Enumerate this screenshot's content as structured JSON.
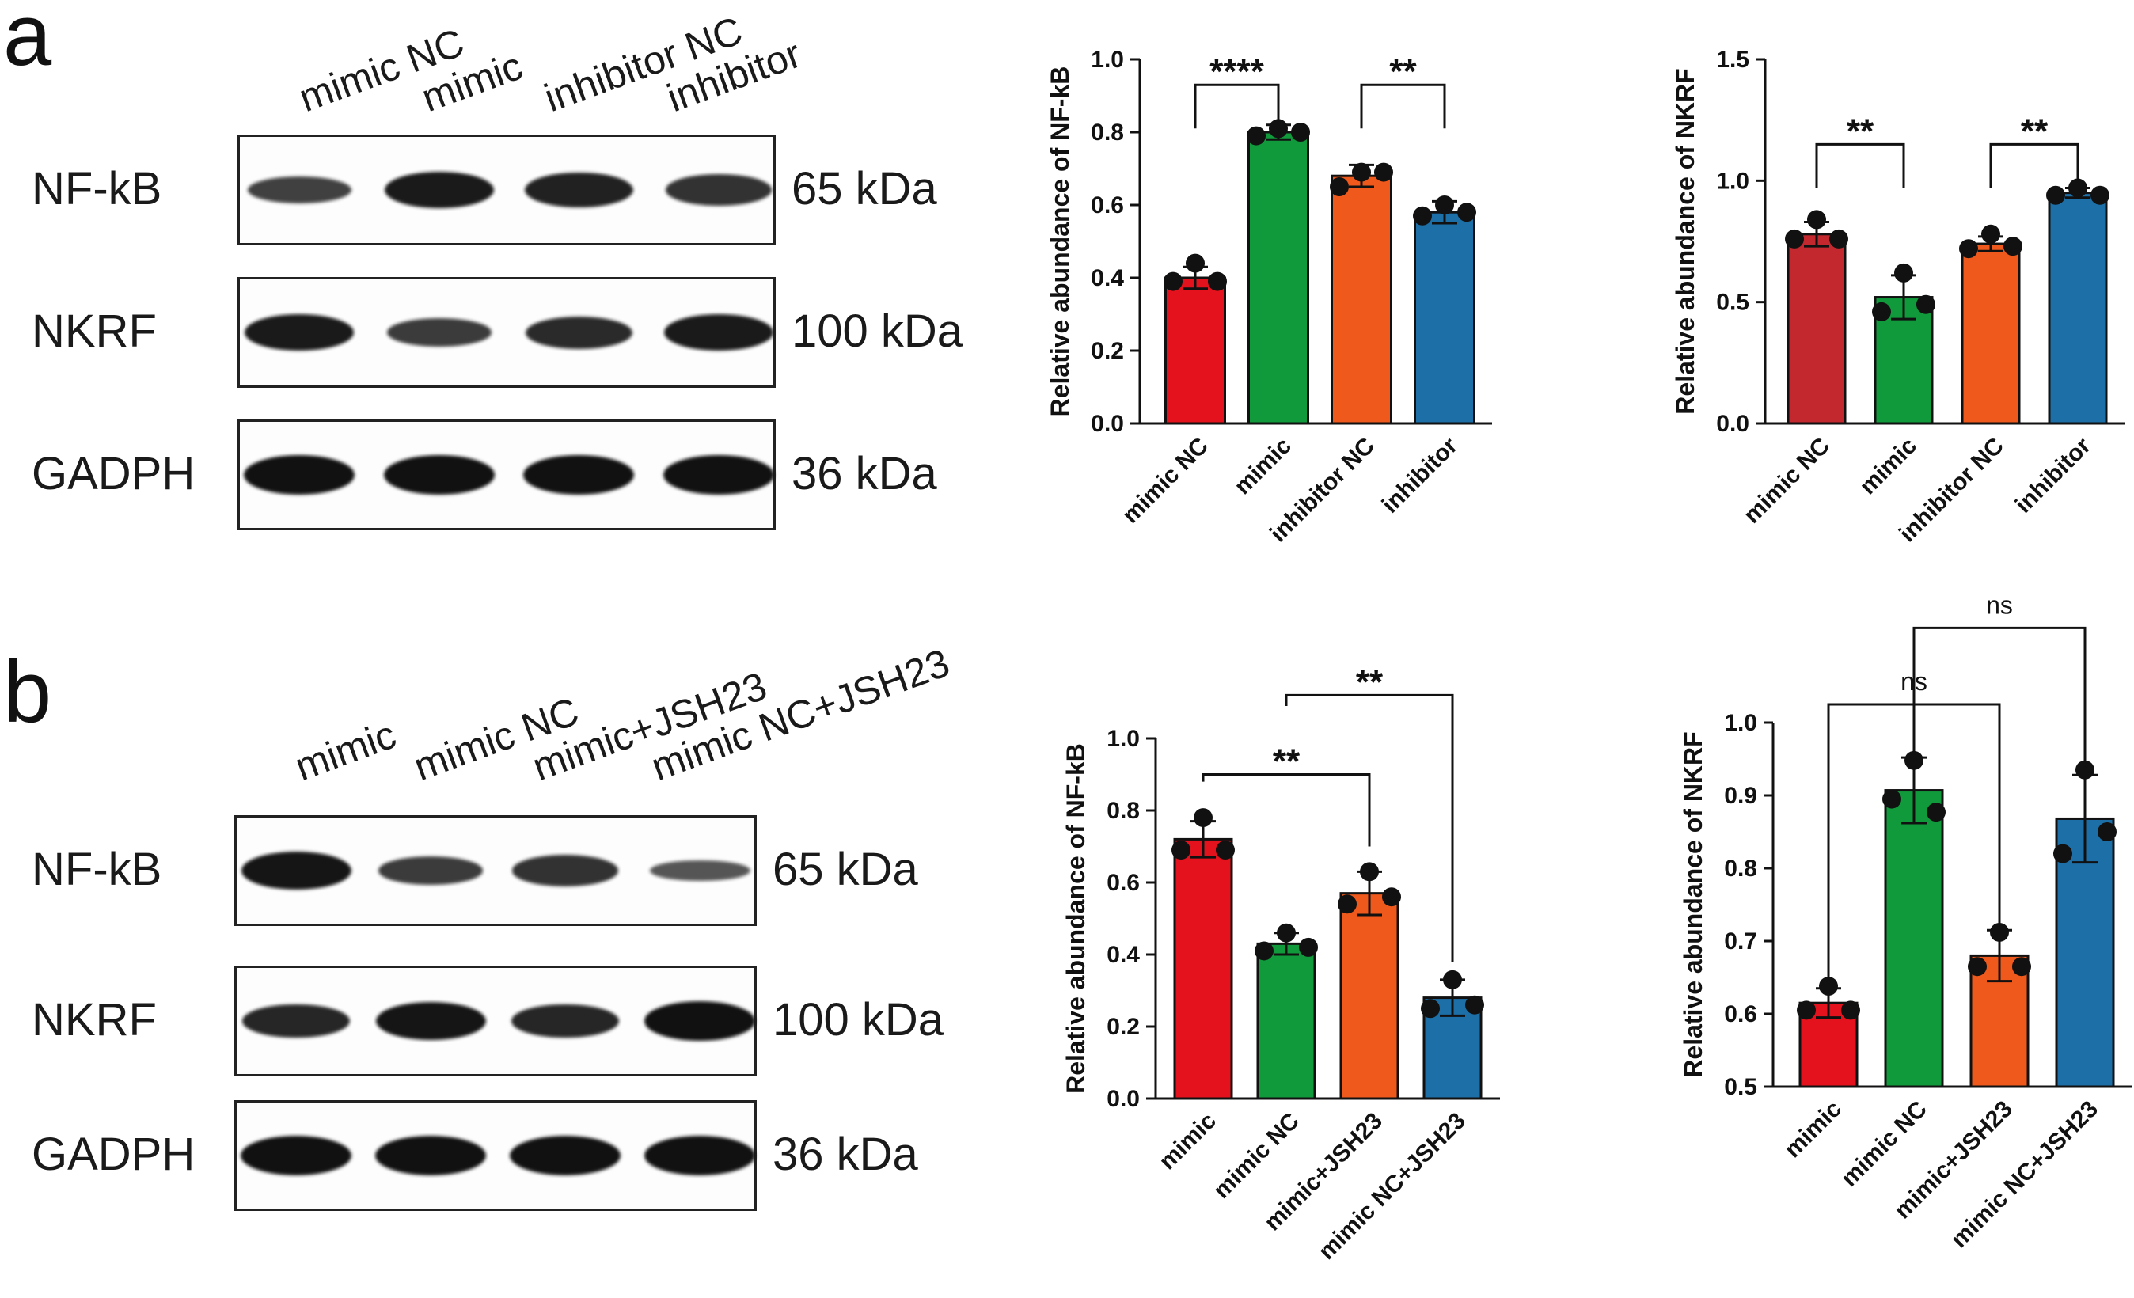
{
  "panels": [
    {
      "letter": "a",
      "blot": {
        "lanes": [
          "mimic NC",
          "mimic",
          "inhibitor NC",
          "inhibitor"
        ],
        "rows": [
          {
            "protein": "NF-kB",
            "kda": "65 kDa",
            "intensity": [
              0.55,
              0.9,
              0.85,
              0.7
            ]
          },
          {
            "protein": "NKRF",
            "kda": "100 kDa",
            "intensity": [
              0.9,
              0.6,
              0.75,
              0.9
            ]
          },
          {
            "protein": "GADPH",
            "kda": "36 kDa",
            "intensity": [
              1.0,
              1.0,
              1.0,
              1.0
            ]
          }
        ]
      }
    },
    {
      "letter": "b",
      "blot": {
        "lanes": [
          "mimic",
          "mimic NC",
          "mimic+JSH23",
          "mimic NC+JSH23"
        ],
        "rows": [
          {
            "protein": "NF-kB",
            "kda": "65 kDa",
            "intensity": [
              0.95,
              0.6,
              0.7,
              0.35
            ]
          },
          {
            "protein": "NKRF",
            "kda": "100 kDa",
            "intensity": [
              0.8,
              0.95,
              0.8,
              1.0
            ]
          },
          {
            "protein": "GADPH",
            "kda": "36 kDa",
            "intensity": [
              1.0,
              1.0,
              1.0,
              1.0
            ]
          }
        ]
      }
    }
  ],
  "chart_data": [
    {
      "id": "a-nfkb",
      "type": "bar",
      "categories": [
        "mimic NC",
        "mimic",
        "inhibitor NC",
        "inhibitor"
      ],
      "values": [
        0.4,
        0.8,
        0.68,
        0.58
      ],
      "errors": [
        0.03,
        0.02,
        0.03,
        0.03
      ],
      "points": [
        [
          0.44,
          0.39,
          0.39
        ],
        [
          0.81,
          0.79,
          0.8
        ],
        [
          0.69,
          0.65,
          0.69
        ],
        [
          0.6,
          0.57,
          0.58
        ]
      ],
      "colors": [
        "#e3121c",
        "#119a3b",
        "#ef5a1c",
        "#1d6fa8"
      ],
      "ylabel": "Relative abundance of NF-kB",
      "ylim": [
        0,
        1.0
      ],
      "yticks": [
        0.0,
        0.2,
        0.4,
        0.6,
        0.8,
        1.0
      ],
      "ytick_labels": [
        "0.0",
        "0.2",
        "0.4",
        "0.6",
        "0.8",
        "1.0"
      ],
      "significance": [
        {
          "from": 0,
          "to": 1,
          "label": "****",
          "level": 0.93
        },
        {
          "from": 2,
          "to": 3,
          "label": "**",
          "level": 0.93
        }
      ]
    },
    {
      "id": "a-nkrf",
      "type": "bar",
      "categories": [
        "mimic NC",
        "mimic",
        "inhibitor NC",
        "inhibitor"
      ],
      "values": [
        0.78,
        0.52,
        0.74,
        0.95
      ],
      "errors": [
        0.05,
        0.09,
        0.03,
        0.02
      ],
      "points": [
        [
          0.84,
          0.76,
          0.76
        ],
        [
          0.62,
          0.46,
          0.49
        ],
        [
          0.78,
          0.72,
          0.73
        ],
        [
          0.97,
          0.94,
          0.94
        ]
      ],
      "colors": [
        "#c4282f",
        "#119a3b",
        "#ef5a1c",
        "#1d6fa8"
      ],
      "ylabel": "Relative abundance of NKRF",
      "ylim": [
        0,
        1.5
      ],
      "yticks": [
        0.0,
        0.5,
        1.0,
        1.5
      ],
      "ytick_labels": [
        "0.0",
        "0.5",
        "1.0",
        "1.5"
      ],
      "significance": [
        {
          "from": 0,
          "to": 1,
          "label": "**",
          "level": 1.15
        },
        {
          "from": 2,
          "to": 3,
          "label": "**",
          "level": 1.15
        }
      ]
    },
    {
      "id": "b-nfkb",
      "type": "bar",
      "categories": [
        "mimic",
        "mimic NC",
        "mimic+JSH23",
        "mimic NC+JSH23"
      ],
      "values": [
        0.72,
        0.43,
        0.57,
        0.28
      ],
      "errors": [
        0.05,
        0.03,
        0.06,
        0.05
      ],
      "points": [
        [
          0.78,
          0.69,
          0.69
        ],
        [
          0.46,
          0.41,
          0.42
        ],
        [
          0.63,
          0.54,
          0.56
        ],
        [
          0.33,
          0.25,
          0.26
        ]
      ],
      "colors": [
        "#e3121c",
        "#119a3b",
        "#ef5a1c",
        "#1d6fa8"
      ],
      "ylabel": "Relative abundance of NF-kB",
      "ylim": [
        0,
        1.0
      ],
      "yticks": [
        0.0,
        0.2,
        0.4,
        0.6,
        0.8,
        1.0
      ],
      "ytick_labels": [
        "0.0",
        "0.2",
        "0.4",
        "0.6",
        "0.8",
        "1.0"
      ],
      "significance": [
        {
          "from": 0,
          "to": 2,
          "label": "**",
          "level": 0.9,
          "drop_to": [
            0.88,
            0.7
          ]
        },
        {
          "from": 1,
          "to": 3,
          "label": "**",
          "level": 1.12,
          "drop_to": [
            1.09,
            0.38
          ]
        }
      ]
    },
    {
      "id": "b-nkrf",
      "type": "bar",
      "categories": [
        "mimic",
        "mimic NC",
        "mimic+JSH23",
        "mimic NC+JSH23"
      ],
      "values": [
        0.615,
        0.907,
        0.68,
        0.868
      ],
      "errors": [
        0.02,
        0.045,
        0.035,
        0.06
      ],
      "points": [
        [
          0.638,
          0.605,
          0.605
        ],
        [
          0.948,
          0.895,
          0.877
        ],
        [
          0.712,
          0.665,
          0.665
        ],
        [
          0.935,
          0.82,
          0.85
        ]
      ],
      "colors": [
        "#e3121c",
        "#119a3b",
        "#ef5a1c",
        "#1d6fa8"
      ],
      "ylabel": "Relative abundance of NKRF",
      "ylim": [
        0.5,
        1.0
      ],
      "yticks": [
        0.5,
        0.6,
        0.7,
        0.8,
        0.9,
        1.0
      ],
      "ytick_labels": [
        "0.5",
        "0.6",
        "0.7",
        "0.8",
        "0.9",
        "1.0"
      ],
      "significance": [
        {
          "from": 0,
          "to": 2,
          "label": "ns",
          "level": 1.025,
          "drop_to": [
            0.65,
            0.72
          ]
        },
        {
          "from": 1,
          "to": 3,
          "label": "ns",
          "level": 1.13,
          "drop_to": [
            0.96,
            0.94
          ]
        }
      ]
    }
  ]
}
